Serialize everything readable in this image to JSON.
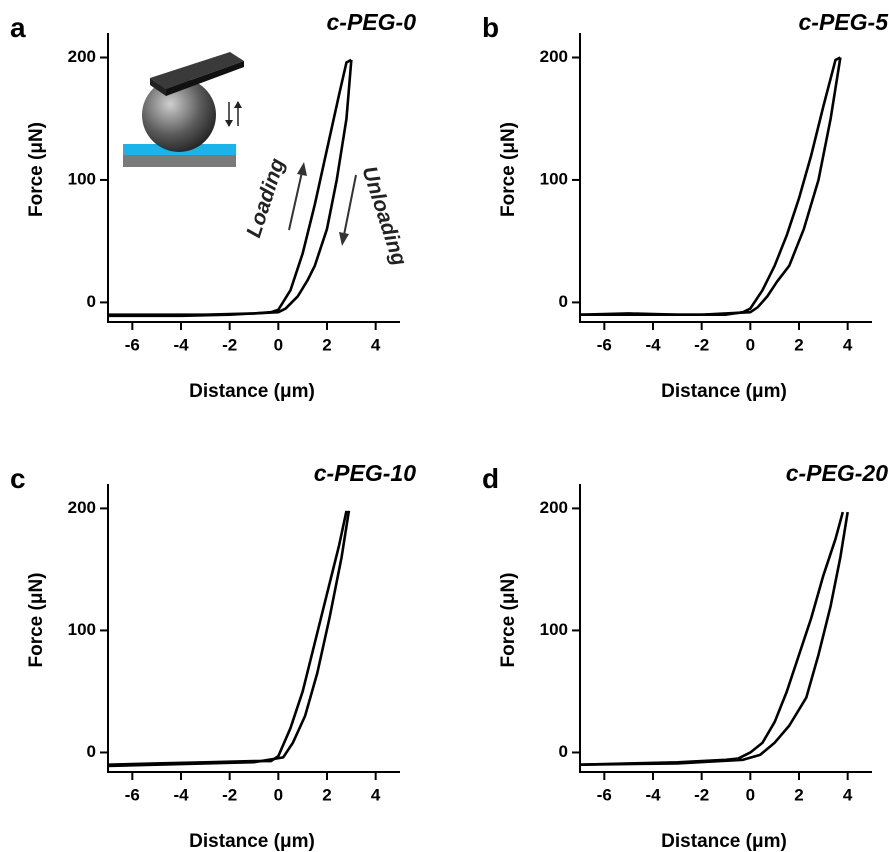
{
  "chart_data": [
    {
      "type": "line",
      "label": "a",
      "title": "c-PEG-0",
      "x_label": "Distance (μm)",
      "y_label": "Force (μN)",
      "xlim": [
        -7,
        5
      ],
      "xticks": [
        -6,
        -4,
        -2,
        0,
        2,
        4
      ],
      "ylim": [
        -16,
        220
      ],
      "yticks": [
        0,
        100,
        200
      ],
      "annotations": [
        "Loading",
        "Unloading"
      ],
      "series": [
        {
          "color": "#000000",
          "x": [
            -7,
            -5,
            -3,
            -1,
            -0.3,
            0,
            0.5,
            1,
            1.5,
            2,
            2.5,
            2.8,
            3.0
          ],
          "values": [
            -10,
            -10,
            -10,
            -9,
            -8,
            -6,
            10,
            40,
            80,
            125,
            170,
            196,
            198
          ]
        },
        {
          "color": "#000000",
          "x": [
            3.0,
            2.8,
            2.4,
            2,
            1.5,
            1.2,
            0.8,
            0.3,
            0,
            -2,
            -4,
            -7
          ],
          "values": [
            198,
            150,
            100,
            60,
            30,
            18,
            5,
            -5,
            -8,
            -10,
            -11,
            -11
          ]
        }
      ]
    },
    {
      "type": "line",
      "label": "b",
      "title": "c-PEG-5",
      "x_label": "Distance (μm)",
      "y_label": "Force (μN)",
      "xlim": [
        -7,
        5
      ],
      "xticks": [
        -6,
        -4,
        -2,
        0,
        2,
        4
      ],
      "ylim": [
        -16,
        220
      ],
      "yticks": [
        0,
        100,
        200
      ],
      "series": [
        {
          "color": "#000000",
          "x": [
            -7,
            -5,
            -3,
            -1,
            -0.3,
            0,
            0.5,
            1,
            1.5,
            2,
            2.5,
            3,
            3.5,
            3.7
          ],
          "values": [
            -10,
            -9,
            -10,
            -10,
            -8,
            -5,
            10,
            30,
            55,
            85,
            120,
            160,
            198,
            200
          ]
        },
        {
          "color": "#000000",
          "x": [
            3.7,
            3.3,
            2.8,
            2.2,
            1.6,
            1.1,
            0.7,
            0.3,
            0,
            -2,
            -4,
            -7
          ],
          "values": [
            200,
            150,
            100,
            60,
            30,
            17,
            5,
            -4,
            -8,
            -10,
            -10,
            -10
          ]
        }
      ]
    },
    {
      "type": "line",
      "label": "c",
      "title": "c-PEG-10",
      "x_label": "Distance (μm)",
      "y_label": "Force (μN)",
      "xlim": [
        -7,
        5
      ],
      "xticks": [
        -6,
        -4,
        -2,
        0,
        2,
        4
      ],
      "ylim": [
        -16,
        220
      ],
      "yticks": [
        0,
        100,
        200
      ],
      "series": [
        {
          "color": "#000000",
          "x": [
            -7,
            -5,
            -3,
            -1,
            -0.3,
            0,
            0.5,
            1,
            1.5,
            2,
            2.5,
            2.8
          ],
          "values": [
            -10,
            -9,
            -8,
            -7,
            -7,
            -3,
            20,
            50,
            90,
            130,
            170,
            198
          ]
        },
        {
          "color": "#000000",
          "x": [
            2.9,
            2.6,
            2.1,
            1.6,
            1.1,
            0.6,
            0.2,
            -1,
            -3,
            -7
          ],
          "values": [
            198,
            160,
            110,
            65,
            30,
            8,
            -4,
            -8,
            -9,
            -11
          ]
        }
      ]
    },
    {
      "type": "line",
      "label": "d",
      "title": "c-PEG-20",
      "x_label": "Distance (μm)",
      "y_label": "Force (μN)",
      "xlim": [
        -7,
        5
      ],
      "xticks": [
        -6,
        -4,
        -2,
        0,
        2,
        4
      ],
      "ylim": [
        -16,
        220
      ],
      "yticks": [
        0,
        100,
        200
      ],
      "series": [
        {
          "color": "#000000",
          "x": [
            -7,
            -5,
            -3,
            -1,
            -0.5,
            0,
            0.5,
            1,
            1.5,
            2,
            2.5,
            3,
            3.5,
            3.8
          ],
          "values": [
            -10,
            -9,
            -8,
            -6,
            -5,
            0,
            8,
            25,
            50,
            80,
            110,
            145,
            175,
            197
          ]
        },
        {
          "color": "#000000",
          "x": [
            4,
            3.7,
            3.3,
            2.8,
            2.3,
            1.6,
            1,
            0.4,
            -0.3,
            -3,
            -7
          ],
          "values": [
            197,
            160,
            120,
            80,
            45,
            22,
            8,
            -2,
            -6,
            -9,
            -10
          ]
        }
      ]
    }
  ]
}
